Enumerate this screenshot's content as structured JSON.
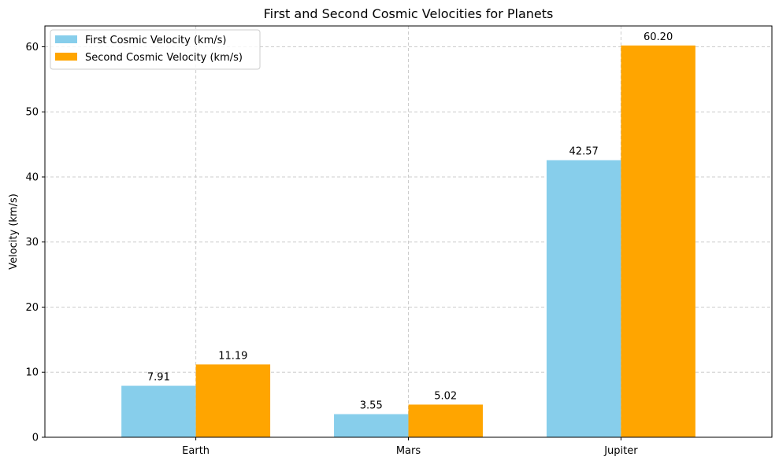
{
  "chart_data": {
    "type": "bar",
    "title": "First and Second Cosmic Velocities for Planets",
    "xlabel": "",
    "ylabel": "Velocity (km/s)",
    "categories": [
      "Earth",
      "Mars",
      "Jupiter"
    ],
    "series": [
      {
        "name": "First Cosmic Velocity (km/s)",
        "values": [
          7.91,
          3.55,
          42.57
        ],
        "labels": [
          "7.91",
          "3.55",
          "42.57"
        ],
        "color": "#87ceeb"
      },
      {
        "name": "Second Cosmic Velocity (km/s)",
        "values": [
          11.19,
          5.02,
          60.2
        ],
        "labels": [
          "11.19",
          "5.02",
          "60.20"
        ],
        "color": "#ffa500"
      }
    ],
    "ylim": [
      0,
      63.2
    ],
    "yticks": [
      0,
      10,
      20,
      30,
      40,
      50,
      60
    ],
    "grid": true,
    "legend_position": "top-left"
  }
}
